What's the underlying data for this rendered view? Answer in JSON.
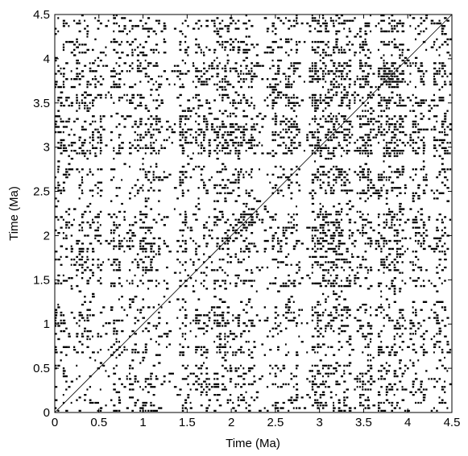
{
  "chart_data": {
    "type": "heatmap",
    "subtype": "recurrence-plot",
    "title": "",
    "xlabel": "Time (Ma)",
    "ylabel": "Time (Ma)",
    "xlim": [
      0,
      4.5
    ],
    "ylim": [
      0,
      4.5
    ],
    "x_ticks": [
      0,
      0.5,
      1,
      1.5,
      2,
      2.5,
      3,
      3.5,
      4,
      4.5
    ],
    "y_ticks": [
      0,
      0.5,
      1,
      1.5,
      2,
      2.5,
      3,
      3.5,
      4,
      4.5
    ],
    "x_tick_labels": [
      "0",
      "0.5",
      "1",
      "1.5",
      "2",
      "2.5",
      "3",
      "3.5",
      "4",
      "4.5"
    ],
    "y_tick_labels": [
      "0",
      "0.5",
      "1",
      "1.5",
      "2",
      "2.5",
      "3",
      "3.5",
      "4",
      "4.5"
    ],
    "grid": false,
    "legend": "none",
    "symmetric": true,
    "line_of_identity": true,
    "colors": {
      "recurrence": "#000000",
      "background": "#ffffff"
    },
    "dense_bands": [
      {
        "from": 0.0,
        "to": 0.15,
        "density": 0.22
      },
      {
        "from": 0.25,
        "to": 0.55,
        "density": 0.2
      },
      {
        "from": 0.65,
        "to": 0.75,
        "density": 0.3
      },
      {
        "from": 0.85,
        "to": 1.2,
        "density": 0.22
      },
      {
        "from": 1.4,
        "to": 1.5,
        "density": 0.3
      },
      {
        "from": 1.6,
        "to": 1.75,
        "density": 0.26
      },
      {
        "from": 1.8,
        "to": 2.25,
        "density": 0.3
      },
      {
        "from": 2.45,
        "to": 2.55,
        "density": 0.32
      },
      {
        "from": 2.62,
        "to": 2.75,
        "density": 0.24
      },
      {
        "from": 2.9,
        "to": 3.35,
        "density": 0.42
      },
      {
        "from": 3.45,
        "to": 3.6,
        "density": 0.3
      },
      {
        "from": 3.65,
        "to": 3.95,
        "density": 0.4
      },
      {
        "from": 4.05,
        "to": 4.2,
        "density": 0.3
      },
      {
        "from": 4.3,
        "to": 4.45,
        "density": 0.26
      }
    ],
    "sparse_bands": [
      {
        "from": 0.55,
        "to": 0.62
      },
      {
        "from": 1.3,
        "to": 1.37
      },
      {
        "from": 2.3,
        "to": 2.4
      },
      {
        "from": 2.8,
        "to": 2.88
      },
      {
        "from": 3.98,
        "to": 4.03
      },
      {
        "from": 4.22,
        "to": 4.28
      }
    ]
  }
}
